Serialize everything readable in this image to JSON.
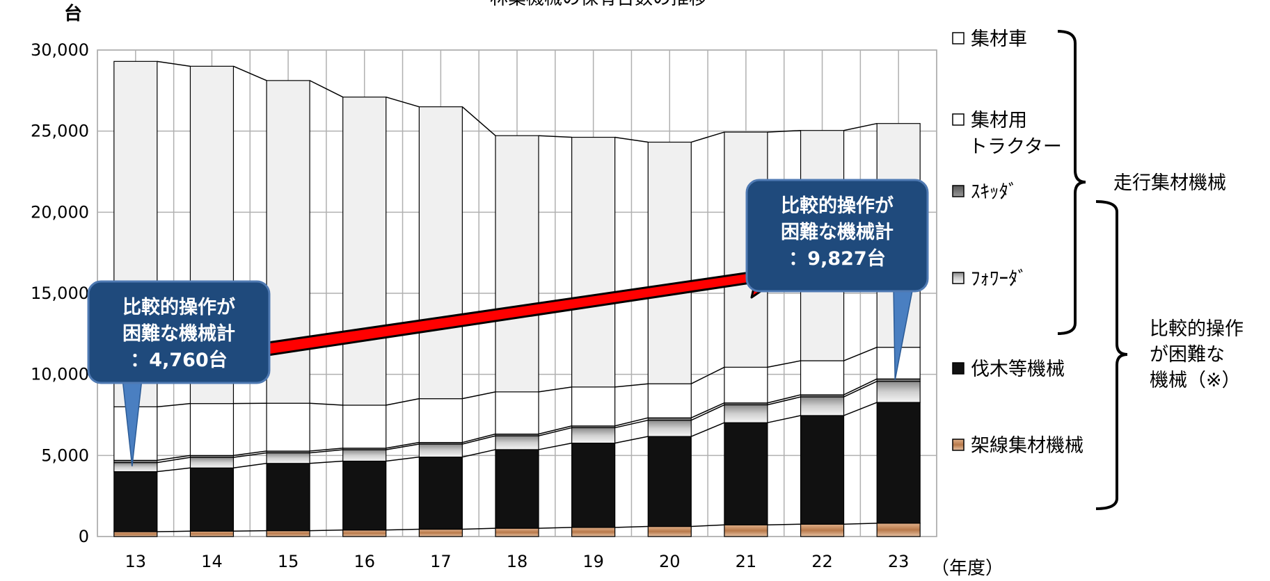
{
  "title": "林業機械の保有台数の推移",
  "chart_data": {
    "type": "bar",
    "stacked": true,
    "categories": [
      "13",
      "14",
      "15",
      "16",
      "17",
      "18",
      "19",
      "20",
      "21",
      "22",
      "23"
    ],
    "xlabel": "（年度）",
    "ylabel": "台",
    "ylim": [
      0,
      30000
    ],
    "yticks": [
      0,
      5000,
      10000,
      15000,
      20000,
      25000,
      30000
    ],
    "ytick_labels": [
      "0",
      "5,000",
      "10,000",
      "15,000",
      "20,000",
      "25,000",
      "30,000"
    ],
    "grid": true,
    "series": [
      {
        "name": "架線集材機械",
        "color": "#c8916a",
        "values": [
          300,
          330,
          360,
          400,
          450,
          510,
          560,
          620,
          720,
          760,
          820
        ]
      },
      {
        "name": "伐木等機械",
        "color": "#111111",
        "values": [
          3700,
          3900,
          4150,
          4250,
          4450,
          4850,
          5200,
          5550,
          6300,
          6700,
          7450
        ]
      },
      {
        "name": "フォワーダ",
        "color": "#b8b8b8",
        "values": [
          560,
          650,
          650,
          700,
          800,
          850,
          950,
          1000,
          1100,
          1150,
          1300
        ]
      },
      {
        "name": "スキッダ",
        "color": "#777777",
        "values": [
          140,
          120,
          110,
          100,
          100,
          110,
          110,
          150,
          120,
          130,
          150
        ]
      },
      {
        "name": "集材用トラクター",
        "color": "#ffffff",
        "values": [
          3300,
          3200,
          2950,
          2650,
          2700,
          2600,
          2400,
          2100,
          2200,
          2100,
          1950
        ]
      },
      {
        "name": "集材車",
        "color": "#f0f0f0",
        "values": [
          21300,
          20800,
          19900,
          19000,
          18000,
          15800,
          15400,
          14900,
          14500,
          14200,
          13800
        ]
      }
    ],
    "legend": [
      "集材車",
      "集材用\nトラクター",
      "ｽｷｯﾀﾞ",
      "ﾌｫﾜｰﾀﾞ",
      "伐木等機械",
      "架線集材機械"
    ],
    "group_labels": {
      "traveling": "走行集材機械",
      "difficult": "比較的操作\nが困難な\n機械（※）"
    },
    "annotations": [
      {
        "text": "比較的操作が\n困難な機械計\n：4,760台",
        "year": "13",
        "value": 4760
      },
      {
        "text": "比較的操作が\n困難な機械計\n：9,827台",
        "year": "23",
        "value": 9827
      }
    ]
  }
}
